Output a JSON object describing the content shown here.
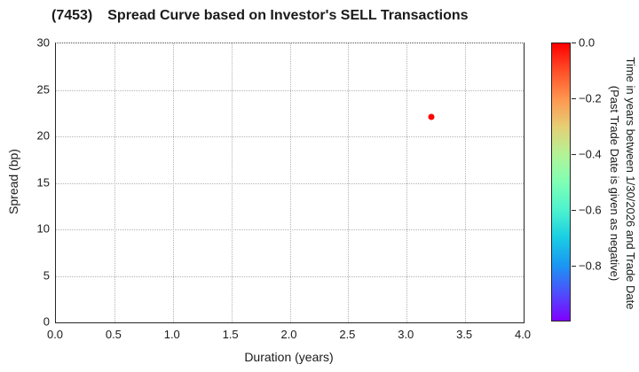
{
  "title": {
    "code": "(7453)",
    "text": "Spread Curve based on Investor's SELL Transactions"
  },
  "chart_data": {
    "type": "scatter",
    "title": "(7453) Spread Curve based on Investor's SELL Transactions",
    "xlabel": "Duration (years)",
    "ylabel": "Spread (bp)",
    "xlim": [
      0.0,
      4.0
    ],
    "ylim": [
      0,
      30
    ],
    "grid": true,
    "legend": "none",
    "x_ticks": [
      {
        "label": "0.0",
        "value": 0.0
      },
      {
        "label": "0.5",
        "value": 0.5
      },
      {
        "label": "1.0",
        "value": 1.0
      },
      {
        "label": "1.5",
        "value": 1.5
      },
      {
        "label": "2.0",
        "value": 2.0
      },
      {
        "label": "2.5",
        "value": 2.5
      },
      {
        "label": "3.0",
        "value": 3.0
      },
      {
        "label": "3.5",
        "value": 3.5
      },
      {
        "label": "4.0",
        "value": 4.0
      }
    ],
    "y_ticks": [
      {
        "label": "0",
        "value": 0
      },
      {
        "label": "5",
        "value": 5
      },
      {
        "label": "10",
        "value": 10
      },
      {
        "label": "15",
        "value": 15
      },
      {
        "label": "20",
        "value": 20
      },
      {
        "label": "25",
        "value": 25
      },
      {
        "label": "30",
        "value": 30
      }
    ],
    "points": [
      {
        "x": 3.21,
        "y": 22.1,
        "color_value": 0.0,
        "color": "#ff0000"
      }
    ],
    "colorbar": {
      "label_line1": "Time in years between 1/30/2026 and Trade Date",
      "label_line2": "(Past Trade Date is given as negative)",
      "range": [
        0.0,
        -1.0
      ],
      "colormap": "rainbow",
      "ticks": [
        {
          "label": "0.0",
          "value": 0.0
        },
        {
          "label": "−0.2",
          "value": -0.2
        },
        {
          "label": "−0.4",
          "value": -0.4
        },
        {
          "label": "−0.6",
          "value": -0.6
        },
        {
          "label": "−0.8",
          "value": -0.8
        }
      ],
      "gradient_stops": [
        "#ff0000",
        "#ff4f28",
        "#ff964f",
        "#e6ce74",
        "#b3f396",
        "#80ffb4",
        "#4df3ce",
        "#19cee3",
        "#1a96f3",
        "#4d4ffc",
        "#8000ff"
      ]
    }
  },
  "colors": {
    "text": "#1a1a1a",
    "spine": "#262626",
    "grid": "#b3b3b3",
    "background": "#ffffff"
  }
}
